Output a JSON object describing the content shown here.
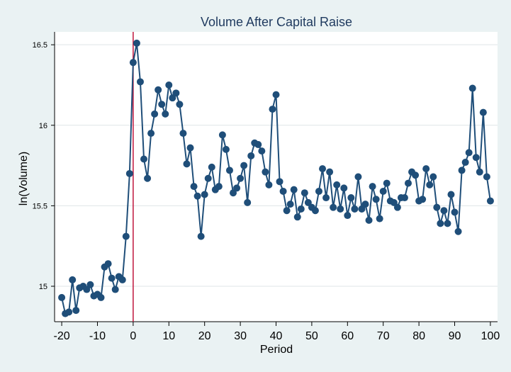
{
  "chart_data": {
    "type": "line",
    "title": "Volume  After Capital Raise",
    "xlabel": "Period",
    "ylabel": "ln(Volume)",
    "xlim": [
      -22,
      102
    ],
    "ylim": [
      14.78,
      16.58
    ],
    "x_ticks": [
      -20,
      -10,
      0,
      10,
      20,
      30,
      40,
      50,
      60,
      70,
      80,
      90,
      100
    ],
    "x_tick_labels": [
      "-20",
      "-10",
      "0",
      "10",
      "20",
      "30",
      "40",
      "50",
      "60",
      "70",
      "80",
      "90",
      "100"
    ],
    "y_ticks": [
      15,
      15.5,
      16,
      16.5
    ],
    "y_tick_labels": [
      "15",
      "15.5",
      "16",
      "16.5"
    ],
    "grid": "horizontal",
    "vertical_line_x": 0,
    "colors": {
      "series": "#1f4e79",
      "vline": "#c0143c",
      "grid": "#dfe5e7",
      "plot_bg": "#ffffff",
      "page_bg": "#eaf2f3"
    },
    "series": [
      {
        "x": [
          -20,
          -19,
          -18,
          -17,
          -16,
          -15,
          -14,
          -13,
          -12,
          -11,
          -10,
          -9,
          -8,
          -7,
          -6,
          -5,
          -4,
          -3,
          -2,
          -1,
          0,
          1,
          2,
          3,
          4,
          5,
          6,
          7,
          8,
          9,
          10,
          11,
          12,
          13,
          14,
          15,
          16,
          17,
          18,
          19,
          20,
          21,
          22,
          23,
          24,
          25,
          26,
          27,
          28,
          29,
          30,
          31,
          32,
          33,
          34,
          35,
          36,
          37,
          38,
          39,
          40,
          41,
          42,
          43,
          44,
          45,
          46,
          47,
          48,
          49,
          50,
          51,
          52,
          53,
          54,
          55,
          56,
          57,
          58,
          59,
          60,
          61,
          62,
          63,
          64,
          65,
          66,
          67,
          68,
          69,
          70,
          71,
          72,
          73,
          74,
          75,
          76,
          77,
          78,
          79,
          80,
          81,
          82,
          83,
          84,
          85,
          86,
          87,
          88,
          89,
          90,
          91,
          92,
          93,
          94,
          95,
          96,
          97,
          98,
          99,
          100
        ],
        "values": [
          14.93,
          14.83,
          14.84,
          15.04,
          14.85,
          14.99,
          15.0,
          14.98,
          15.01,
          14.94,
          14.95,
          14.93,
          15.12,
          15.14,
          15.05,
          14.98,
          15.06,
          15.04,
          15.31,
          15.7,
          16.39,
          16.51,
          16.27,
          15.79,
          15.67,
          15.95,
          16.07,
          16.22,
          16.13,
          16.07,
          16.25,
          16.17,
          16.2,
          16.13,
          15.95,
          15.76,
          15.86,
          15.62,
          15.56,
          15.31,
          15.57,
          15.67,
          15.74,
          15.6,
          15.62,
          15.94,
          15.85,
          15.72,
          15.58,
          15.61,
          15.67,
          15.75,
          15.52,
          15.81,
          15.89,
          15.88,
          15.84,
          15.71,
          15.63,
          16.1,
          16.19,
          15.65,
          15.59,
          15.47,
          15.51,
          15.6,
          15.43,
          15.48,
          15.58,
          15.52,
          15.49,
          15.47,
          15.59,
          15.73,
          15.55,
          15.71,
          15.49,
          15.63,
          15.48,
          15.61,
          15.44,
          15.55,
          15.48,
          15.68,
          15.48,
          15.51,
          15.41,
          15.62,
          15.54,
          15.42,
          15.59,
          15.64,
          15.53,
          15.52,
          15.49,
          15.55,
          15.55,
          15.64,
          15.71,
          15.69,
          15.53,
          15.54,
          15.73,
          15.63,
          15.68,
          15.49,
          15.39,
          15.47,
          15.39,
          15.57,
          15.46,
          15.34,
          15.72,
          15.77,
          15.83,
          16.23,
          15.8,
          15.71,
          16.08,
          15.68,
          15.53
        ]
      }
    ]
  }
}
